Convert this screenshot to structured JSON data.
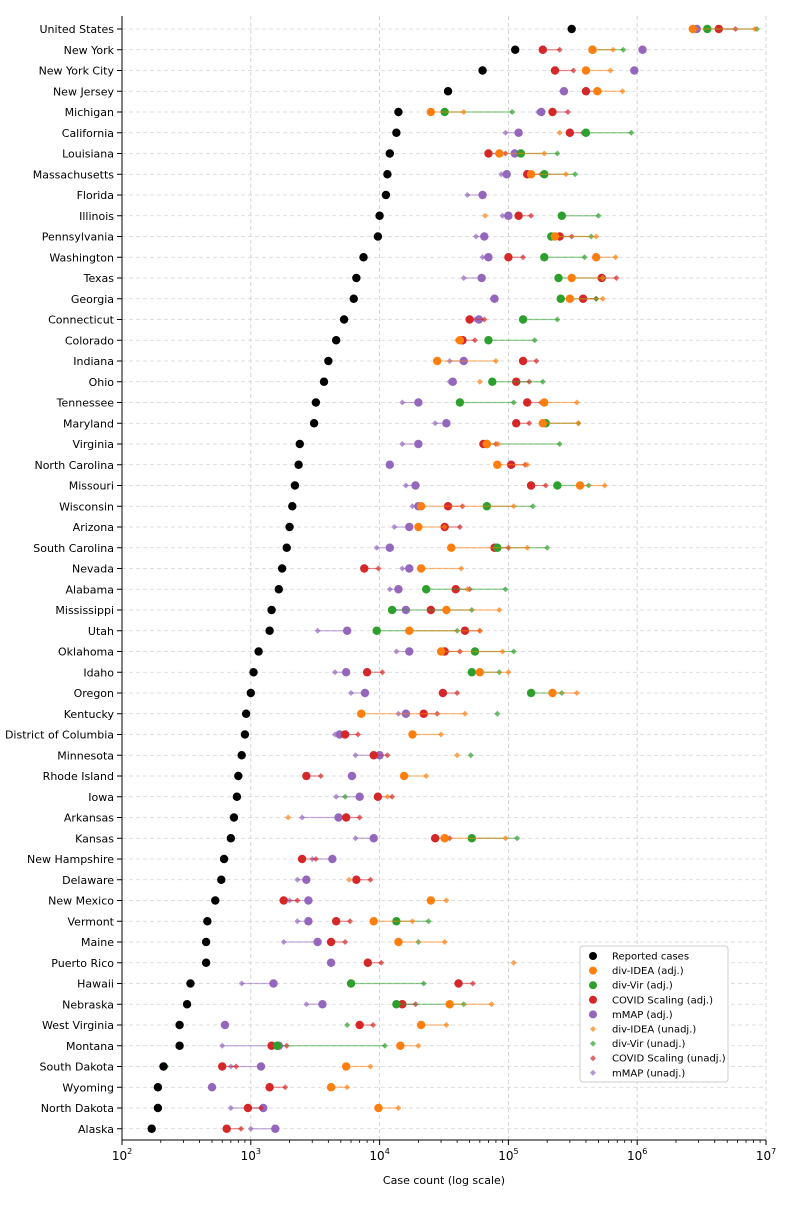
{
  "chart_data": {
    "type": "scatter",
    "xlabel": "Case count (log scale)",
    "x_scale": "log",
    "xlim": [
      100,
      10000000
    ],
    "x_ticks": [
      {
        "value": 100,
        "base": "10",
        "exp": "2"
      },
      {
        "value": 1000,
        "base": "10",
        "exp": "3"
      },
      {
        "value": 10000,
        "base": "10",
        "exp": "4"
      },
      {
        "value": 100000,
        "base": "10",
        "exp": "5"
      },
      {
        "value": 1000000,
        "base": "10",
        "exp": "6"
      },
      {
        "value": 10000000,
        "base": "10",
        "exp": "7"
      }
    ],
    "grid": true,
    "legend_position": "bottom-right",
    "series_meta": [
      {
        "key": "reported",
        "name": "Reported cases",
        "color": "#000000",
        "marker": "circle"
      },
      {
        "key": "idea",
        "name": "div-IDEA (adj.)",
        "color": "#ff7f0e",
        "marker": "circle"
      },
      {
        "key": "vir",
        "name": "div-Vir (adj.)",
        "color": "#2ca02c",
        "marker": "circle"
      },
      {
        "key": "covid",
        "name": "COVID Scaling (adj.)",
        "color": "#d62728",
        "marker": "circle"
      },
      {
        "key": "mmap",
        "name": "mMAP (adj.)",
        "color": "#9467bd",
        "marker": "circle"
      },
      {
        "key": "idea_u",
        "name": "div-IDEA (unadj.)",
        "color": "#ff7f0e",
        "marker": "diamond"
      },
      {
        "key": "vir_u",
        "name": "div-Vir (unadj.)",
        "color": "#2ca02c",
        "marker": "diamond"
      },
      {
        "key": "covid_u",
        "name": "COVID Scaling (unadj.)",
        "color": "#d62728",
        "marker": "diamond"
      },
      {
        "key": "mmap_u",
        "name": "mMAP (unadj.)",
        "color": "#9467bd",
        "marker": "diamond"
      }
    ],
    "states": [
      {
        "name": "United States",
        "reported": 310000,
        "idea": [
          2700000,
          8200000
        ],
        "vir": [
          3500000,
          8500000
        ],
        "covid": [
          4300000,
          5800000
        ],
        "mmap": [
          2900000,
          2800000
        ]
      },
      {
        "name": "New York",
        "reported": 113000,
        "idea": [
          450000,
          650000
        ],
        "vir": [
          450000,
          780000
        ],
        "covid": [
          185000,
          250000
        ],
        "mmap": [
          1100000,
          1100000
        ]
      },
      {
        "name": "New York City",
        "reported": 63000,
        "idea": [
          400000,
          620000
        ],
        "vir": null,
        "covid": [
          230000,
          320000
        ],
        "mmap": [
          950000,
          950000
        ]
      },
      {
        "name": "New Jersey",
        "reported": 34000,
        "idea": [
          490000,
          770000
        ],
        "vir": null,
        "covid": [
          400000,
          500000
        ],
        "mmap": [
          270000,
          260000
        ]
      },
      {
        "name": "Michigan",
        "reported": 14000,
        "idea": [
          25000,
          45000
        ],
        "vir": [
          32000,
          107000
        ],
        "covid": [
          220000,
          290000
        ],
        "mmap": [
          180000,
          170000
        ]
      },
      {
        "name": "California",
        "reported": 13500,
        "idea": [
          null,
          250000
        ],
        "vir": [
          400000,
          900000
        ],
        "covid": [
          300000,
          380000
        ],
        "mmap": [
          120000,
          95000
        ]
      },
      {
        "name": "Louisiana",
        "reported": 12000,
        "idea": [
          85000,
          190000
        ],
        "vir": [
          125000,
          240000
        ],
        "covid": [
          70000,
          95000
        ],
        "mmap": [
          112000,
          112000
        ]
      },
      {
        "name": "Massachusetts",
        "reported": 11500,
        "idea": [
          150000,
          280000
        ],
        "vir": [
          190000,
          330000
        ],
        "covid": [
          140000,
          180000
        ],
        "mmap": [
          97000,
          88000
        ]
      },
      {
        "name": "Florida",
        "reported": 11200,
        "idea": null,
        "vir": null,
        "covid": null,
        "mmap": [
          63000,
          48000
        ]
      },
      {
        "name": "Illinois",
        "reported": 10000,
        "idea": [
          null,
          66000
        ],
        "vir": [
          260000,
          500000
        ],
        "covid": [
          120000,
          150000
        ],
        "mmap": [
          100000,
          90000
        ]
      },
      {
        "name": "Pennsylvania",
        "reported": 9700,
        "idea": [
          230000,
          480000
        ],
        "vir": [
          215000,
          440000
        ],
        "covid": [
          250000,
          310000
        ],
        "mmap": [
          65000,
          56000
        ]
      },
      {
        "name": "Washington",
        "reported": 7500,
        "idea": [
          480000,
          680000
        ],
        "vir": [
          190000,
          390000
        ],
        "covid": [
          100000,
          130000
        ],
        "mmap": [
          70000,
          63000
        ]
      },
      {
        "name": "Texas",
        "reported": 6600,
        "idea": [
          310000,
          540000
        ],
        "vir": [
          245000,
          540000
        ],
        "covid": [
          530000,
          690000
        ],
        "mmap": [
          62000,
          45000
        ]
      },
      {
        "name": "Georgia",
        "reported": 6300,
        "idea": [
          300000,
          540000
        ],
        "vir": [
          255000,
          480000
        ],
        "covid": [
          380000,
          480000
        ],
        "mmap": [
          78000,
          75000
        ]
      },
      {
        "name": "Connecticut",
        "reported": 5300,
        "idea": null,
        "vir": [
          130000,
          240000
        ],
        "covid": [
          50000,
          65000
        ],
        "mmap": [
          59000,
          55000
        ]
      },
      {
        "name": "Colorado",
        "reported": 4600,
        "idea": [
          42000,
          40000
        ],
        "vir": [
          70000,
          160000
        ],
        "covid": [
          44000,
          55000
        ],
        "mmap": [
          44000,
          42000
        ]
      },
      {
        "name": "Indiana",
        "reported": 4000,
        "idea": [
          28000,
          80000
        ],
        "vir": null,
        "covid": [
          130000,
          165000
        ],
        "mmap": [
          45000,
          35000
        ]
      },
      {
        "name": "Ohio",
        "reported": 3700,
        "idea": [
          null,
          60000
        ],
        "vir": [
          75000,
          185000
        ],
        "covid": [
          115000,
          145000
        ],
        "mmap": [
          37000,
          35000
        ]
      },
      {
        "name": "Tennessee",
        "reported": 3200,
        "idea": [
          190000,
          340000
        ],
        "vir": [
          42000,
          110000
        ],
        "covid": [
          140000,
          180000
        ],
        "mmap": [
          20000,
          15000
        ]
      },
      {
        "name": "Maryland",
        "reported": 3100,
        "idea": [
          185000,
          350000
        ],
        "vir": [
          195000,
          350000
        ],
        "covid": [
          115000,
          145000
        ],
        "mmap": [
          33000,
          27000
        ]
      },
      {
        "name": "Virginia",
        "reported": 2400,
        "idea": [
          68000,
          83000
        ],
        "vir": [
          68000,
          250000
        ],
        "covid": [
          64000,
          80000
        ],
        "mmap": [
          20000,
          15000
        ]
      },
      {
        "name": "North Carolina",
        "reported": 2350,
        "idea": [
          82000,
          140000
        ],
        "vir": null,
        "covid": [
          105000,
          135000
        ],
        "mmap": [
          12000,
          12000
        ]
      },
      {
        "name": "Missouri",
        "reported": 2200,
        "idea": [
          360000,
          560000
        ],
        "vir": [
          240000,
          420000
        ],
        "covid": [
          150000,
          195000
        ],
        "mmap": [
          19000,
          16000
        ]
      },
      {
        "name": "Wisconsin",
        "reported": 2100,
        "idea": [
          21000,
          110000
        ],
        "vir": [
          68000,
          155000
        ],
        "covid": [
          34000,
          44000
        ],
        "mmap": [
          20000,
          18000
        ]
      },
      {
        "name": "Arizona",
        "reported": 2000,
        "idea": [
          20000,
          32000
        ],
        "vir": null,
        "covid": [
          32000,
          42000
        ],
        "mmap": [
          17000,
          13000
        ]
      },
      {
        "name": "South Carolina",
        "reported": 1900,
        "idea": [
          36000,
          140000
        ],
        "vir": [
          82000,
          200000
        ],
        "covid": [
          78000,
          100000
        ],
        "mmap": [
          12000,
          9500
        ]
      },
      {
        "name": "Nevada",
        "reported": 1750,
        "idea": [
          21000,
          43000
        ],
        "vir": null,
        "covid": [
          7600,
          9800
        ],
        "mmap": [
          17000,
          15000
        ]
      },
      {
        "name": "Alabama",
        "reported": 1650,
        "idea": [
          null,
          48000
        ],
        "vir": [
          23000,
          95000
        ],
        "covid": [
          39000,
          50000
        ],
        "mmap": [
          14000,
          12000
        ]
      },
      {
        "name": "Mississippi",
        "reported": 1450,
        "idea": [
          33000,
          85000
        ],
        "vir": [
          12500,
          52000
        ],
        "covid": [
          25000,
          32000
        ],
        "mmap": [
          16000,
          13000
        ]
      },
      {
        "name": "Utah",
        "reported": 1400,
        "idea": [
          17000,
          60000
        ],
        "vir": [
          9500,
          40000
        ],
        "covid": [
          46000,
          60000
        ],
        "mmap": [
          5600,
          3300
        ]
      },
      {
        "name": "Oklahoma",
        "reported": 1150,
        "idea": [
          30000,
          90000
        ],
        "vir": [
          55000,
          110000
        ],
        "covid": [
          32000,
          42000
        ],
        "mmap": [
          17000,
          13500
        ]
      },
      {
        "name": "Idaho",
        "reported": 1050,
        "idea": [
          60000,
          100000
        ],
        "vir": [
          52000,
          85000
        ],
        "covid": [
          8000,
          10500
        ],
        "mmap": [
          5500,
          4500
        ]
      },
      {
        "name": "Oregon",
        "reported": 1000,
        "idea": [
          220000,
          340000
        ],
        "vir": [
          150000,
          260000
        ],
        "covid": [
          31000,
          40000
        ],
        "mmap": [
          7700,
          6000
        ]
      },
      {
        "name": "Kentucky",
        "reported": 920,
        "idea": [
          7200,
          46000
        ],
        "vir": [
          null,
          82000
        ],
        "covid": [
          22000,
          28000
        ],
        "mmap": [
          16000,
          14000
        ]
      },
      {
        "name": "District of Columbia",
        "reported": 900,
        "idea": [
          18000,
          30000
        ],
        "vir": null,
        "covid": [
          5400,
          6800
        ],
        "mmap": [
          4900,
          4500
        ]
      },
      {
        "name": "Minnesota",
        "reported": 850,
        "idea": [
          null,
          40000
        ],
        "vir": [
          null,
          51000
        ],
        "covid": [
          9000,
          11500
        ],
        "mmap": [
          10000,
          6500
        ]
      },
      {
        "name": "Rhode Island",
        "reported": 800,
        "idea": [
          15500,
          23000
        ],
        "vir": null,
        "covid": [
          2700,
          3500
        ],
        "mmap": [
          6100,
          6100
        ]
      },
      {
        "name": "Iowa",
        "reported": 780,
        "idea": [
          null,
          11500
        ],
        "vir": [
          null,
          5400
        ],
        "covid": [
          9700,
          12500
        ],
        "mmap": [
          7000,
          4600
        ]
      },
      {
        "name": "Arkansas",
        "reported": 740,
        "idea": [
          null,
          1950
        ],
        "vir": null,
        "covid": [
          5500,
          7000
        ],
        "mmap": [
          4800,
          2500
        ]
      },
      {
        "name": "Kansas",
        "reported": 700,
        "idea": [
          32000,
          95000
        ],
        "vir": [
          52000,
          117000
        ],
        "covid": [
          27000,
          35000
        ],
        "mmap": [
          9000,
          6500
        ]
      },
      {
        "name": "New Hampshire",
        "reported": 620,
        "idea": [
          null,
          620
        ],
        "vir": null,
        "covid": [
          2500,
          3200
        ],
        "mmap": [
          4300,
          3000
        ]
      },
      {
        "name": "Delaware",
        "reported": 590,
        "idea": [
          null,
          5800
        ],
        "vir": null,
        "covid": [
          6600,
          8500
        ],
        "mmap": [
          2700,
          2300
        ]
      },
      {
        "name": "New Mexico",
        "reported": 530,
        "idea": [
          25000,
          33000
        ],
        "vir": null,
        "covid": [
          1800,
          2300
        ],
        "mmap": [
          2800,
          2000
        ]
      },
      {
        "name": "Vermont",
        "reported": 460,
        "idea": [
          9000,
          18000
        ],
        "vir": [
          13500,
          24000
        ],
        "covid": [
          4600,
          5900
        ],
        "mmap": [
          2800,
          2300
        ]
      },
      {
        "name": "Maine",
        "reported": 450,
        "idea": [
          14000,
          32000
        ],
        "vir": [
          null,
          20000
        ],
        "covid": [
          4200,
          5400
        ],
        "mmap": [
          3300,
          1800
        ]
      },
      {
        "name": "Puerto Rico",
        "reported": 450,
        "idea": [
          null,
          110000
        ],
        "vir": null,
        "covid": [
          8100,
          10300
        ],
        "mmap": [
          4200,
          4200
        ]
      },
      {
        "name": "Hawaii",
        "reported": 340,
        "idea": null,
        "vir": [
          6000,
          22000
        ],
        "covid": [
          41000,
          53000
        ],
        "mmap": [
          1500,
          850
        ]
      },
      {
        "name": "Nebraska",
        "reported": 320,
        "idea": [
          35000,
          74000
        ],
        "vir": [
          13500,
          45000
        ],
        "covid": [
          15000,
          19000
        ],
        "mmap": [
          3600,
          2700
        ]
      },
      {
        "name": "West Virginia",
        "reported": 280,
        "idea": [
          21000,
          33000
        ],
        "vir": [
          null,
          5600
        ],
        "covid": [
          7000,
          8900
        ],
        "mmap": [
          630,
          630
        ]
      },
      {
        "name": "Montana",
        "reported": 280,
        "idea": [
          14500,
          20000
        ],
        "vir": [
          1600,
          11000
        ],
        "covid": [
          1450,
          1900
        ],
        "mmap": [
          1650,
          600
        ]
      },
      {
        "name": "South Dakota",
        "reported": 210,
        "idea": [
          5500,
          8500
        ],
        "vir": [
          null,
          220
        ],
        "covid": [
          600,
          770
        ],
        "mmap": [
          1200,
          700
        ]
      },
      {
        "name": "Wyoming",
        "reported": 190,
        "idea": [
          4200,
          5600
        ],
        "vir": null,
        "covid": [
          1400,
          1850
        ],
        "mmap": [
          500,
          500
        ]
      },
      {
        "name": "North Dakota",
        "reported": 190,
        "idea": [
          9800,
          14000
        ],
        "vir": null,
        "covid": [
          950,
          1200
        ],
        "mmap": [
          1250,
          700
        ]
      },
      {
        "name": "Alaska",
        "reported": 170,
        "idea": null,
        "vir": null,
        "covid": [
          650,
          840
        ],
        "mmap": [
          1550,
          1000
        ]
      }
    ]
  }
}
